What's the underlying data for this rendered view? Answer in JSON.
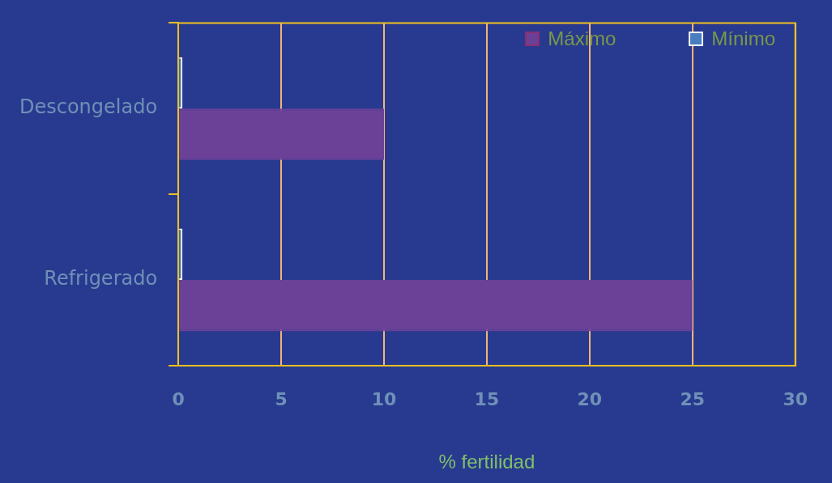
{
  "chart_data": {
    "type": "bar",
    "orientation": "horizontal",
    "xlabel": "% fertilidad",
    "categories": [
      "Descongelado",
      "Refrigerado"
    ],
    "series": [
      {
        "name": "Mínimo",
        "color": "#4a7cc0",
        "values": [
          0.2,
          0.2
        ]
      },
      {
        "name": "Máximo",
        "color": "#6b4198",
        "values": [
          10,
          25
        ]
      }
    ],
    "xlim": [
      0,
      30
    ],
    "xticks": [
      0,
      5,
      10,
      15,
      20,
      25,
      30
    ],
    "grid": "x",
    "legend": "top right"
  }
}
